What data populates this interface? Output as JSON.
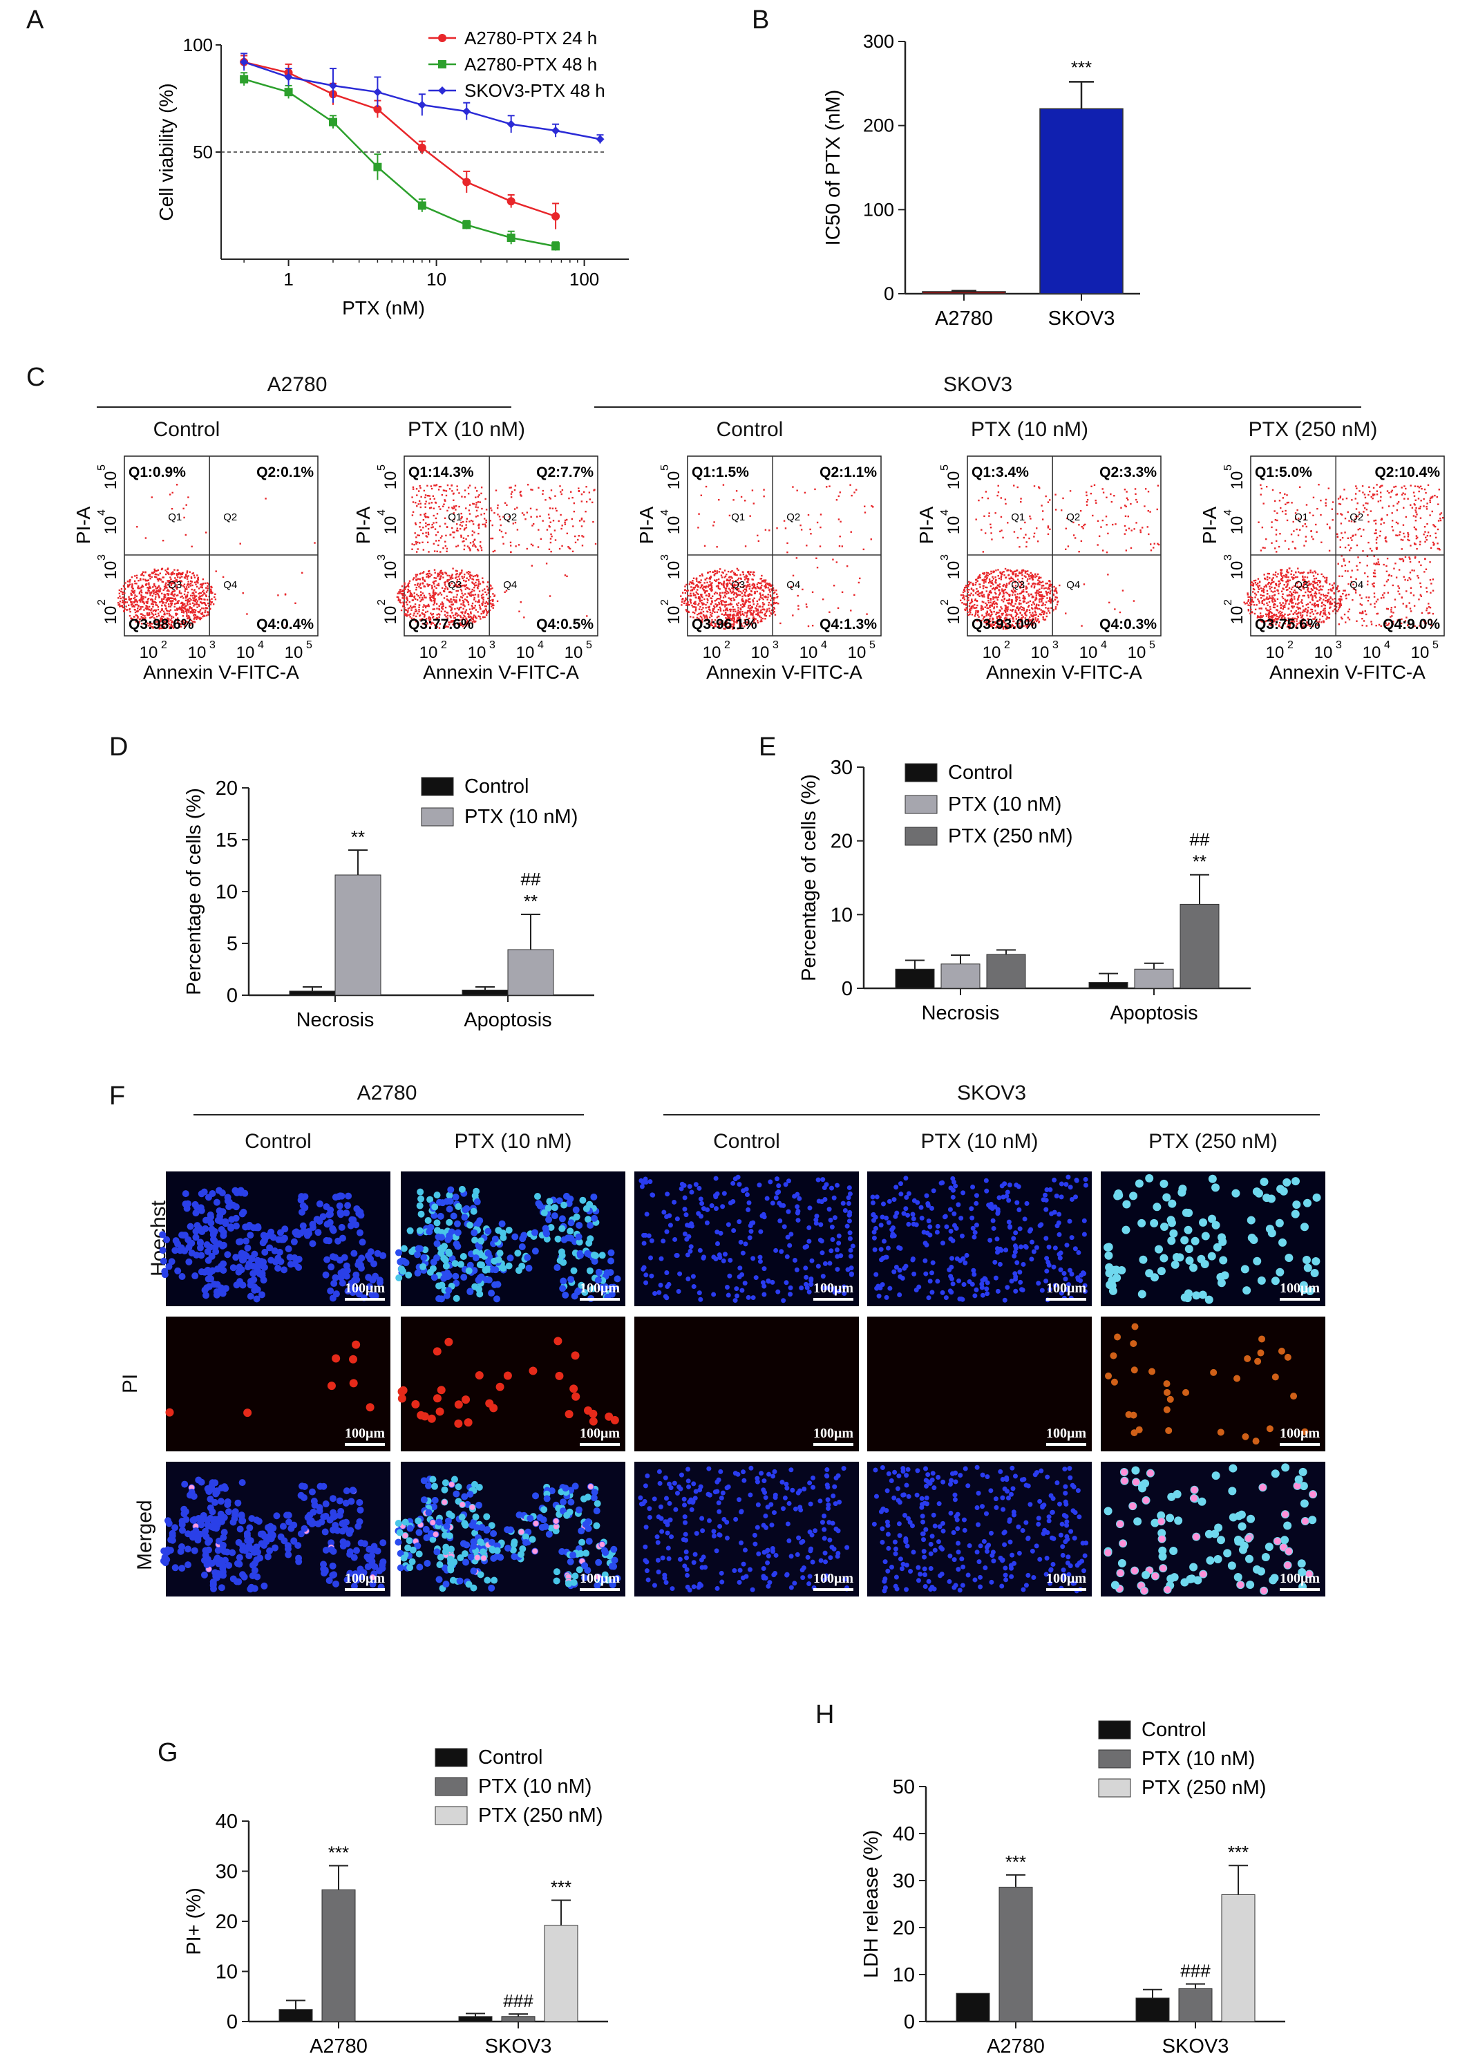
{
  "panels": {
    "A": "A",
    "B": "B",
    "C": "C",
    "D": "D",
    "E": "E",
    "F": "F",
    "G": "G",
    "H": "H"
  },
  "colors": {
    "red": "#e8262a",
    "green": "#2ca02c",
    "blue": "#2b2bd6",
    "navy": "#1020b0",
    "darkred": "#8b1010",
    "black": "#111111",
    "gray": "#a6a6ae",
    "darkgray": "#6e6e70",
    "lightgray": "#d6d6d6"
  },
  "chart_data": [
    {
      "id": "A",
      "type": "line",
      "xlabel": "PTX (nM)",
      "ylabel": "Cell viability (%)",
      "xscale": "log",
      "xticks": [
        "1",
        "10",
        "100"
      ],
      "yticks": [
        "50",
        "100"
      ],
      "ylim": [
        0,
        100
      ],
      "reference_line": 50,
      "legend_position": "top-right",
      "series": [
        {
          "name": "A2780-PTX 24 h",
          "color": "#e8262a",
          "x": [
            0.5,
            1,
            2,
            4,
            8,
            16,
            32,
            64
          ],
          "y": [
            92,
            87,
            77,
            70,
            52,
            36,
            27,
            20
          ],
          "err": [
            3,
            4,
            5,
            4,
            3,
            5,
            3,
            6
          ]
        },
        {
          "name": "A2780-PTX 48 h",
          "color": "#2ca02c",
          "x": [
            0.5,
            1,
            2,
            4,
            8,
            16,
            32,
            64
          ],
          "y": [
            84,
            78,
            64,
            43,
            25,
            16,
            10,
            6
          ],
          "err": [
            3,
            3,
            3,
            6,
            3,
            2,
            3,
            2
          ]
        },
        {
          "name": "SKOV3-PTX 48 h",
          "color": "#2b2bd6",
          "x": [
            0.5,
            1,
            2,
            4,
            8,
            16,
            32,
            64,
            128
          ],
          "y": [
            92,
            85,
            81,
            78,
            72,
            69,
            63,
            60,
            56
          ],
          "err": [
            4,
            4,
            8,
            7,
            5,
            4,
            4,
            3,
            2
          ]
        }
      ]
    },
    {
      "id": "B",
      "type": "bar",
      "ylabel": "IC50 of PTX (nM)",
      "ylim": [
        0,
        300
      ],
      "yticks": [
        "0",
        "100",
        "200",
        "300"
      ],
      "categories": [
        "A2780",
        "SKOV3"
      ],
      "values": [
        2.5,
        220
      ],
      "err": [
        1,
        32
      ],
      "colors": [
        "#8b1010",
        "#1020b0"
      ],
      "annotations": [
        "",
        "***"
      ]
    },
    {
      "id": "D",
      "type": "bar",
      "ylabel": "Percentage of cells (%)",
      "ylim": [
        0,
        20
      ],
      "yticks": [
        "0",
        "5",
        "10",
        "15",
        "20"
      ],
      "categories": [
        "Necrosis",
        "Apoptosis"
      ],
      "legend_position": "top-right",
      "series": [
        {
          "name": "Control",
          "color": "#111111",
          "values": [
            0.4,
            0.5
          ],
          "err": [
            0.4,
            0.3
          ]
        },
        {
          "name": "PTX (10 nM)",
          "color": "#a6a6ae",
          "values": [
            11.6,
            4.4
          ],
          "err": [
            2.4,
            3.4
          ]
        }
      ],
      "annotations": [
        [
          "",
          "**"
        ],
        [
          "",
          "**"
        ]
      ],
      "annotations2": [
        [
          "",
          ""
        ],
        [
          "",
          "##"
        ]
      ]
    },
    {
      "id": "E",
      "type": "bar",
      "ylabel": "Percentage of cells (%)",
      "ylim": [
        0,
        30
      ],
      "yticks": [
        "0",
        "10",
        "20",
        "30"
      ],
      "categories": [
        "Necrosis",
        "Apoptosis"
      ],
      "legend_position": "top-left",
      "series": [
        {
          "name": "Control",
          "color": "#111111",
          "values": [
            2.6,
            0.8
          ],
          "err": [
            1.2,
            1.2
          ]
        },
        {
          "name": "PTX (10 nM)",
          "color": "#a6a6ae",
          "values": [
            3.3,
            2.6
          ],
          "err": [
            1.2,
            0.8
          ]
        },
        {
          "name": "PTX (250 nM)",
          "color": "#6e6e70",
          "values": [
            4.6,
            11.4
          ],
          "err": [
            0.6,
            4.0
          ]
        }
      ],
      "annotations": [
        [
          "",
          "",
          ""
        ],
        [
          "",
          "",
          "**"
        ]
      ],
      "annotations2": [
        [
          "",
          "",
          ""
        ],
        [
          "",
          "",
          "##"
        ]
      ]
    },
    {
      "id": "G",
      "type": "bar",
      "ylabel": "PI+ (%)",
      "ylim": [
        0,
        40
      ],
      "yticks": [
        "0",
        "10",
        "20",
        "30",
        "40"
      ],
      "categories": [
        "A2780",
        "SKOV3"
      ],
      "legend_position": "top",
      "series": [
        {
          "name": "Control",
          "color": "#111111",
          "values": [
            2.4,
            1.0
          ],
          "err": [
            1.8,
            0.6
          ]
        },
        {
          "name": "PTX (10 nM)",
          "color": "#6e6e70",
          "values": [
            26.3,
            1.0
          ],
          "err": [
            4.8,
            0.5
          ]
        },
        {
          "name": "PTX (250 nM)",
          "color": "#d6d6d6",
          "values": [
            null,
            19.2
          ],
          "err": [
            null,
            5.0
          ]
        }
      ],
      "annotations": [
        [
          "",
          "***",
          ""
        ],
        [
          "",
          "###",
          "***"
        ]
      ]
    },
    {
      "id": "H",
      "type": "bar",
      "ylabel": "LDH release (%)",
      "ylim": [
        0,
        50
      ],
      "yticks": [
        "0",
        "10",
        "20",
        "30",
        "40",
        "50"
      ],
      "categories": [
        "A2780",
        "SKOV3"
      ],
      "legend_position": "top",
      "series": [
        {
          "name": "Control",
          "color": "#111111",
          "values": [
            6.0,
            5.0
          ],
          "err": [
            0,
            1.8
          ]
        },
        {
          "name": "PTX (10 nM)",
          "color": "#6e6e70",
          "values": [
            28.6,
            7.0
          ],
          "err": [
            2.6,
            1.0
          ]
        },
        {
          "name": "PTX (250 nM)",
          "color": "#d6d6d6",
          "values": [
            null,
            27.0
          ],
          "err": [
            null,
            6.2
          ]
        }
      ],
      "annotations": [
        [
          "",
          "***",
          ""
        ],
        [
          "",
          "###",
          "***"
        ]
      ]
    }
  ],
  "flow": {
    "groups": [
      "A2780",
      "SKOV3"
    ],
    "xlabel": "Annexin V-FITC-A",
    "ylabel": "PI-A",
    "ticks": [
      "10",
      "2",
      "10",
      "3",
      "10",
      "4",
      "10",
      "5"
    ],
    "plots": [
      {
        "title": "Control",
        "q1": "Q1:0.9%",
        "q2": "Q2:0.1%",
        "q3": "Q3:98.6%",
        "q4": "Q4:0.4%"
      },
      {
        "title": "PTX (10 nM)",
        "q1": "Q1:14.3%",
        "q2": "Q2:7.7%",
        "q3": "Q3:77.6%",
        "q4": "Q4:0.5%"
      },
      {
        "title": "Control",
        "q1": "Q1:1.5%",
        "q2": "Q2:1.1%",
        "q3": "Q3:96.1%",
        "q4": "Q4:1.3%"
      },
      {
        "title": "PTX (10 nM)",
        "q1": "Q1:3.4%",
        "q2": "Q2:3.3%",
        "q3": "Q3:93.0%",
        "q4": "Q4:0.3%"
      },
      {
        "title": "PTX (250 nM)",
        "q1": "Q1:5.0%",
        "q2": "Q2:10.4%",
        "q3": "Q3:75.6%",
        "q4": "Q4:9.0%"
      }
    ],
    "inner": {
      "q1": "Q1",
      "q2": "Q2",
      "q3": "Q3",
      "q4": "Q4"
    }
  },
  "micro": {
    "groups": [
      "A2780",
      "SKOV3"
    ],
    "columns": [
      "Control",
      "PTX (10 nM)",
      "Control",
      "PTX (10 nM)",
      "PTX (250 nM)"
    ],
    "rows": [
      "Hoechst",
      "PI",
      "Merged"
    ],
    "scale": "100μm"
  }
}
